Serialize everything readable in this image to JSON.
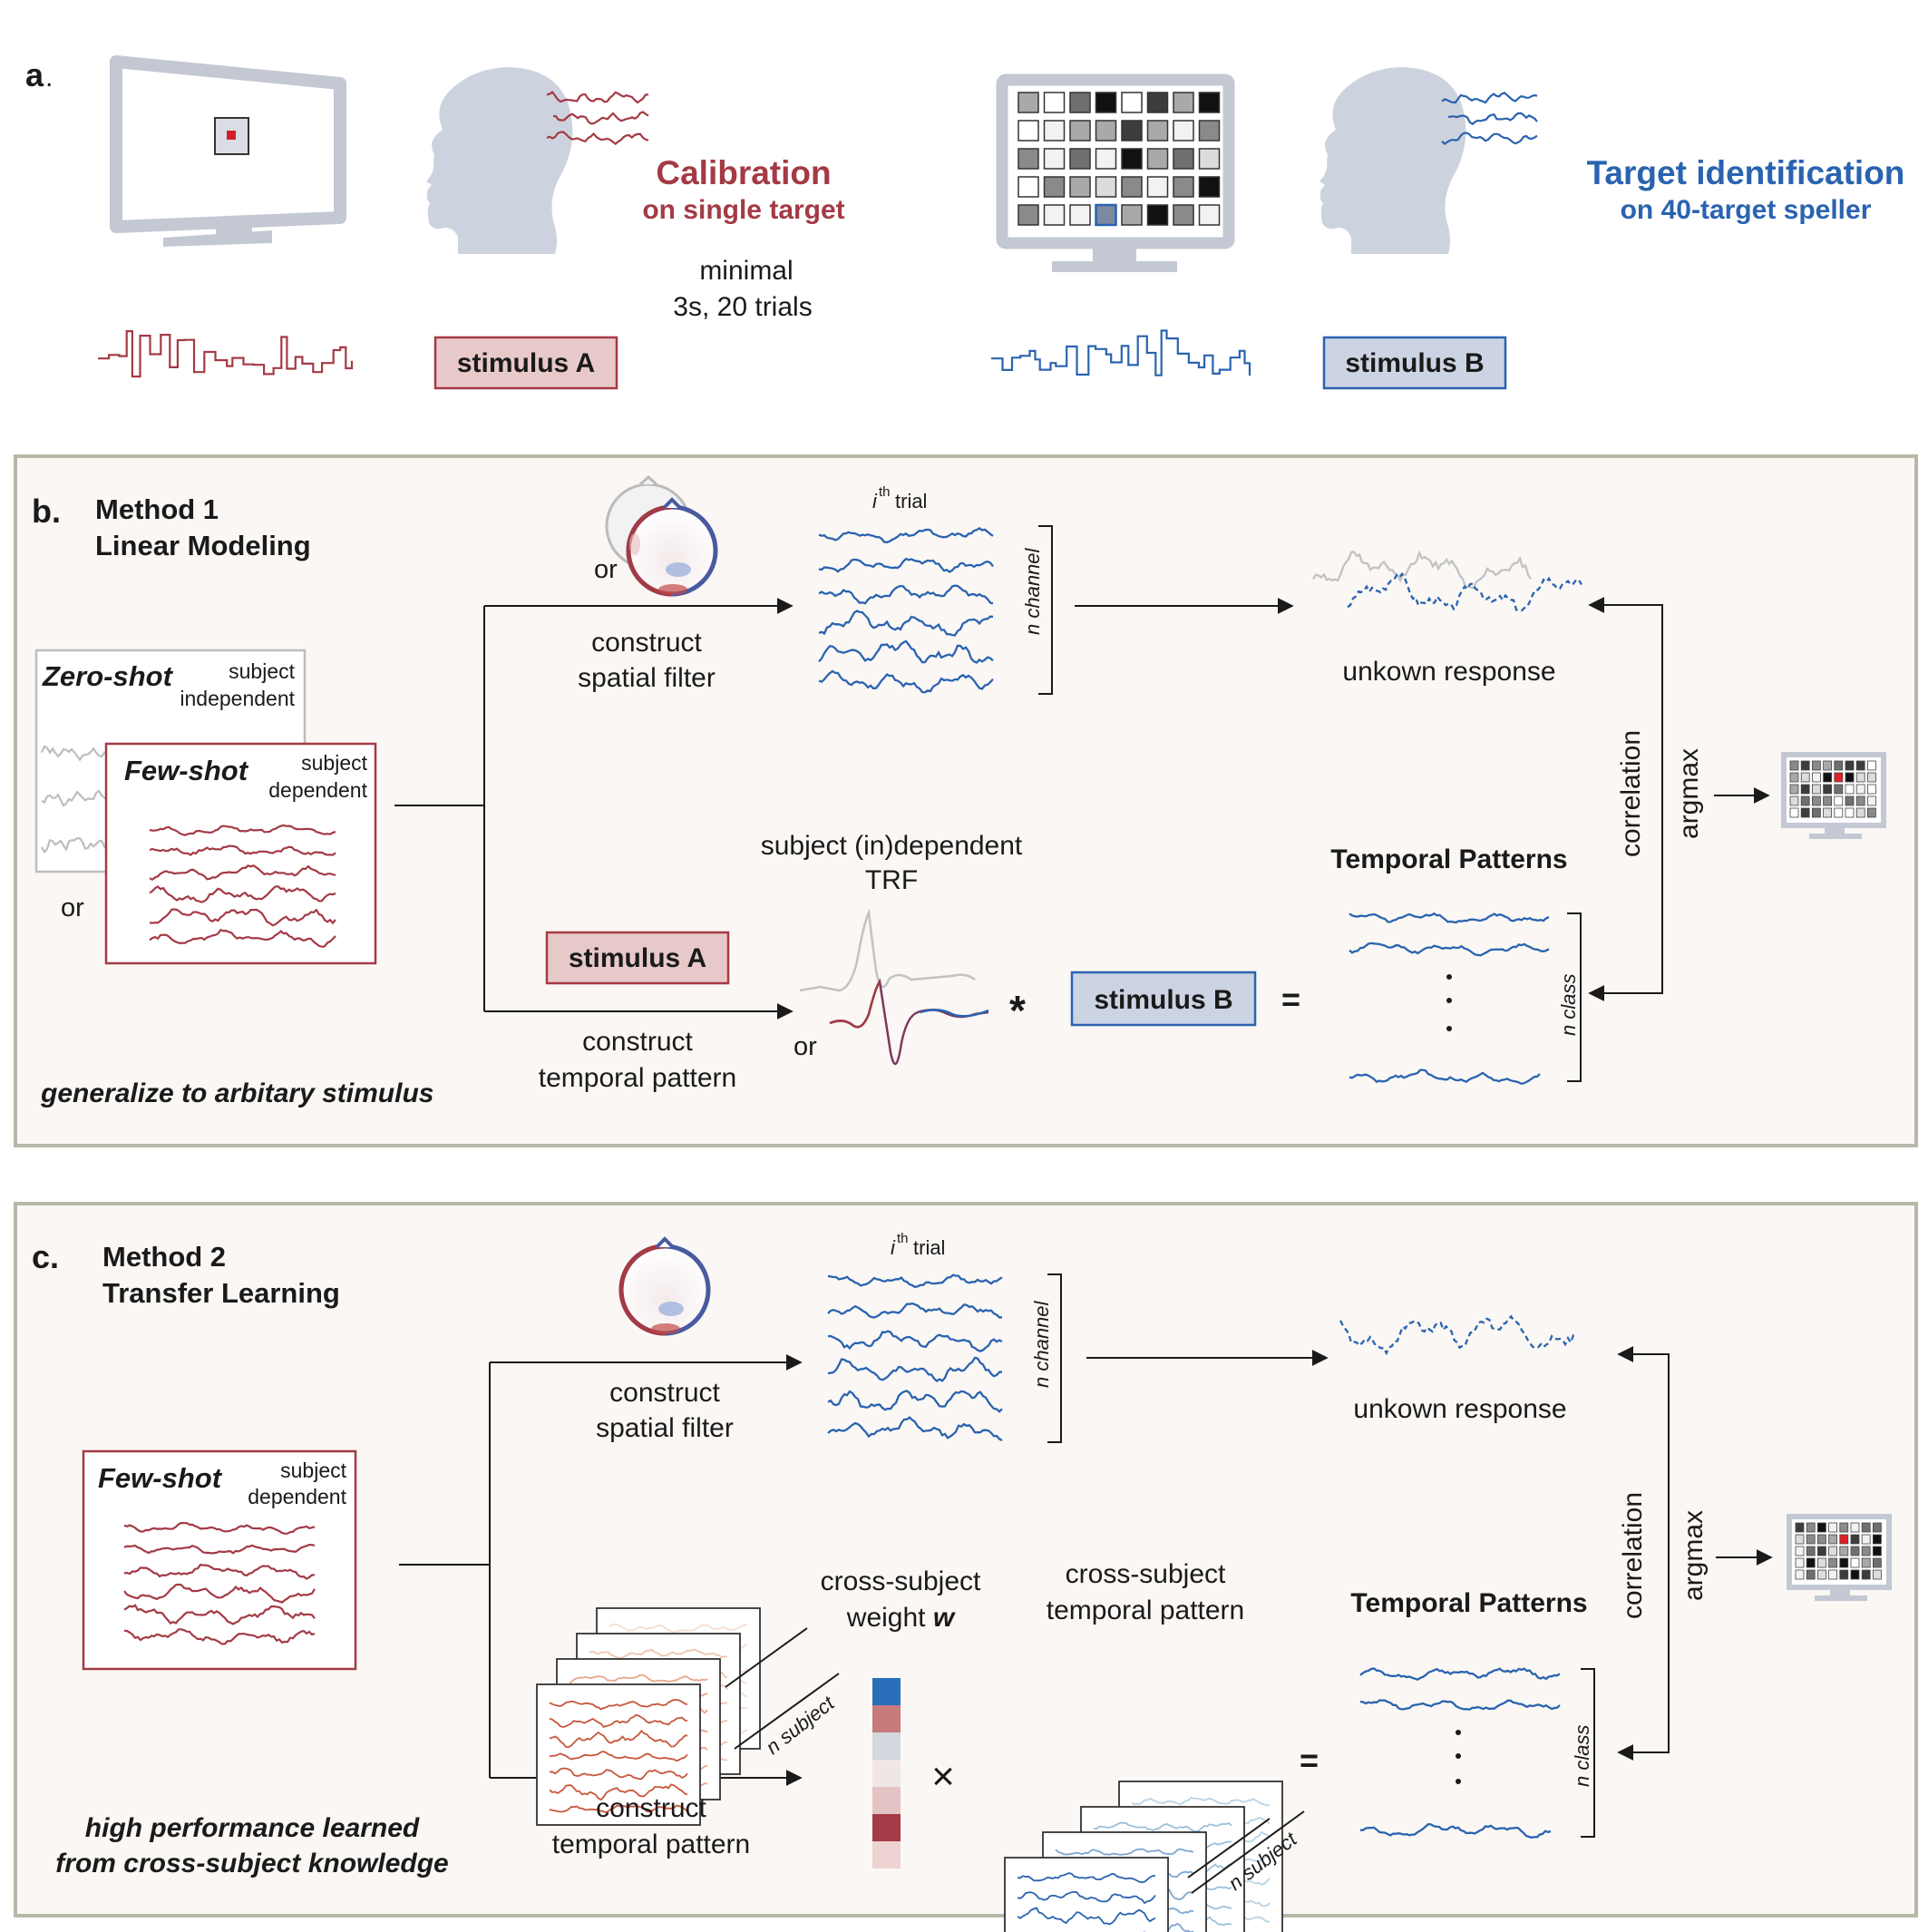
{
  "colors": {
    "red": "#a43a45",
    "blue": "#2a63b0",
    "panel_bg": "#faf7f4",
    "panel_border": "#b8b8a8",
    "monitor": "#c9cdd8",
    "head": "#cdd3de",
    "stimA_fill": "#e8c9c9",
    "stimB_fill": "#ccd3e3"
  },
  "panel_a": {
    "label": "a",
    "calibration_line1": "Calibration",
    "calibration_line2": "on single target",
    "minimal_line1": "minimal",
    "minimal_line2": "3s, 20 trials",
    "stimulus_a": "stimulus A",
    "stimulus_b": "stimulus B",
    "target_line1": "Target identification",
    "target_line2": "on 40-target speller"
  },
  "panel_b": {
    "label": "b.",
    "title1": "Method 1",
    "title2": "Linear Modeling",
    "or_head": "or",
    "ith": "i",
    "ith_sup": "th",
    "trial": "trial",
    "n_channel": "n channel",
    "construct_spatial1": "construct",
    "construct_spatial2": "spatial filter",
    "unknown_response": "unkown response",
    "zero_shot": "Zero-shot",
    "subject1": "subject",
    "independent": "independent",
    "few_shot": "Few-shot",
    "subject2": "subject",
    "dependent": "dependent",
    "or_left": "or",
    "trf1": "subject (in)dependent",
    "trf2": "TRF",
    "temporal_patterns": "Temporal Patterns",
    "correlation": "correlation",
    "argmax": "argmax",
    "stimulus_a": "stimulus A",
    "or_trf": "or",
    "star": "*",
    "stimulus_b": "stimulus B",
    "equals": "=",
    "n_class": "n class",
    "construct_temporal1": "construct",
    "construct_temporal2": "temporal pattern",
    "generalize": "generalize to arbitary stimulus"
  },
  "panel_c": {
    "label": "c.",
    "title1": "Method 2",
    "title2": "Transfer Learning",
    "ith": "i",
    "ith_sup": "th",
    "trial": "trial",
    "n_channel": "n channel",
    "construct_spatial1": "construct",
    "construct_spatial2": "spatial filter",
    "unknown_response": "unkown response",
    "few_shot": "Few-shot",
    "subject": "subject",
    "dependent": "dependent",
    "cs_weight1": "cross-subject",
    "cs_weight2": "weight",
    "w": "w",
    "cs_temporal1": "cross-subject",
    "cs_temporal2": "temporal pattern",
    "temporal_patterns": "Temporal Patterns",
    "correlation": "correlation",
    "argmax": "argmax",
    "n_subject": "n subject",
    "times": "×",
    "equals": "=",
    "n_class": "n class",
    "construct_temporal1": "construct",
    "construct_temporal2": "temporal pattern",
    "high1": "high performance learned",
    "high2": "from cross-subject knowledge"
  }
}
